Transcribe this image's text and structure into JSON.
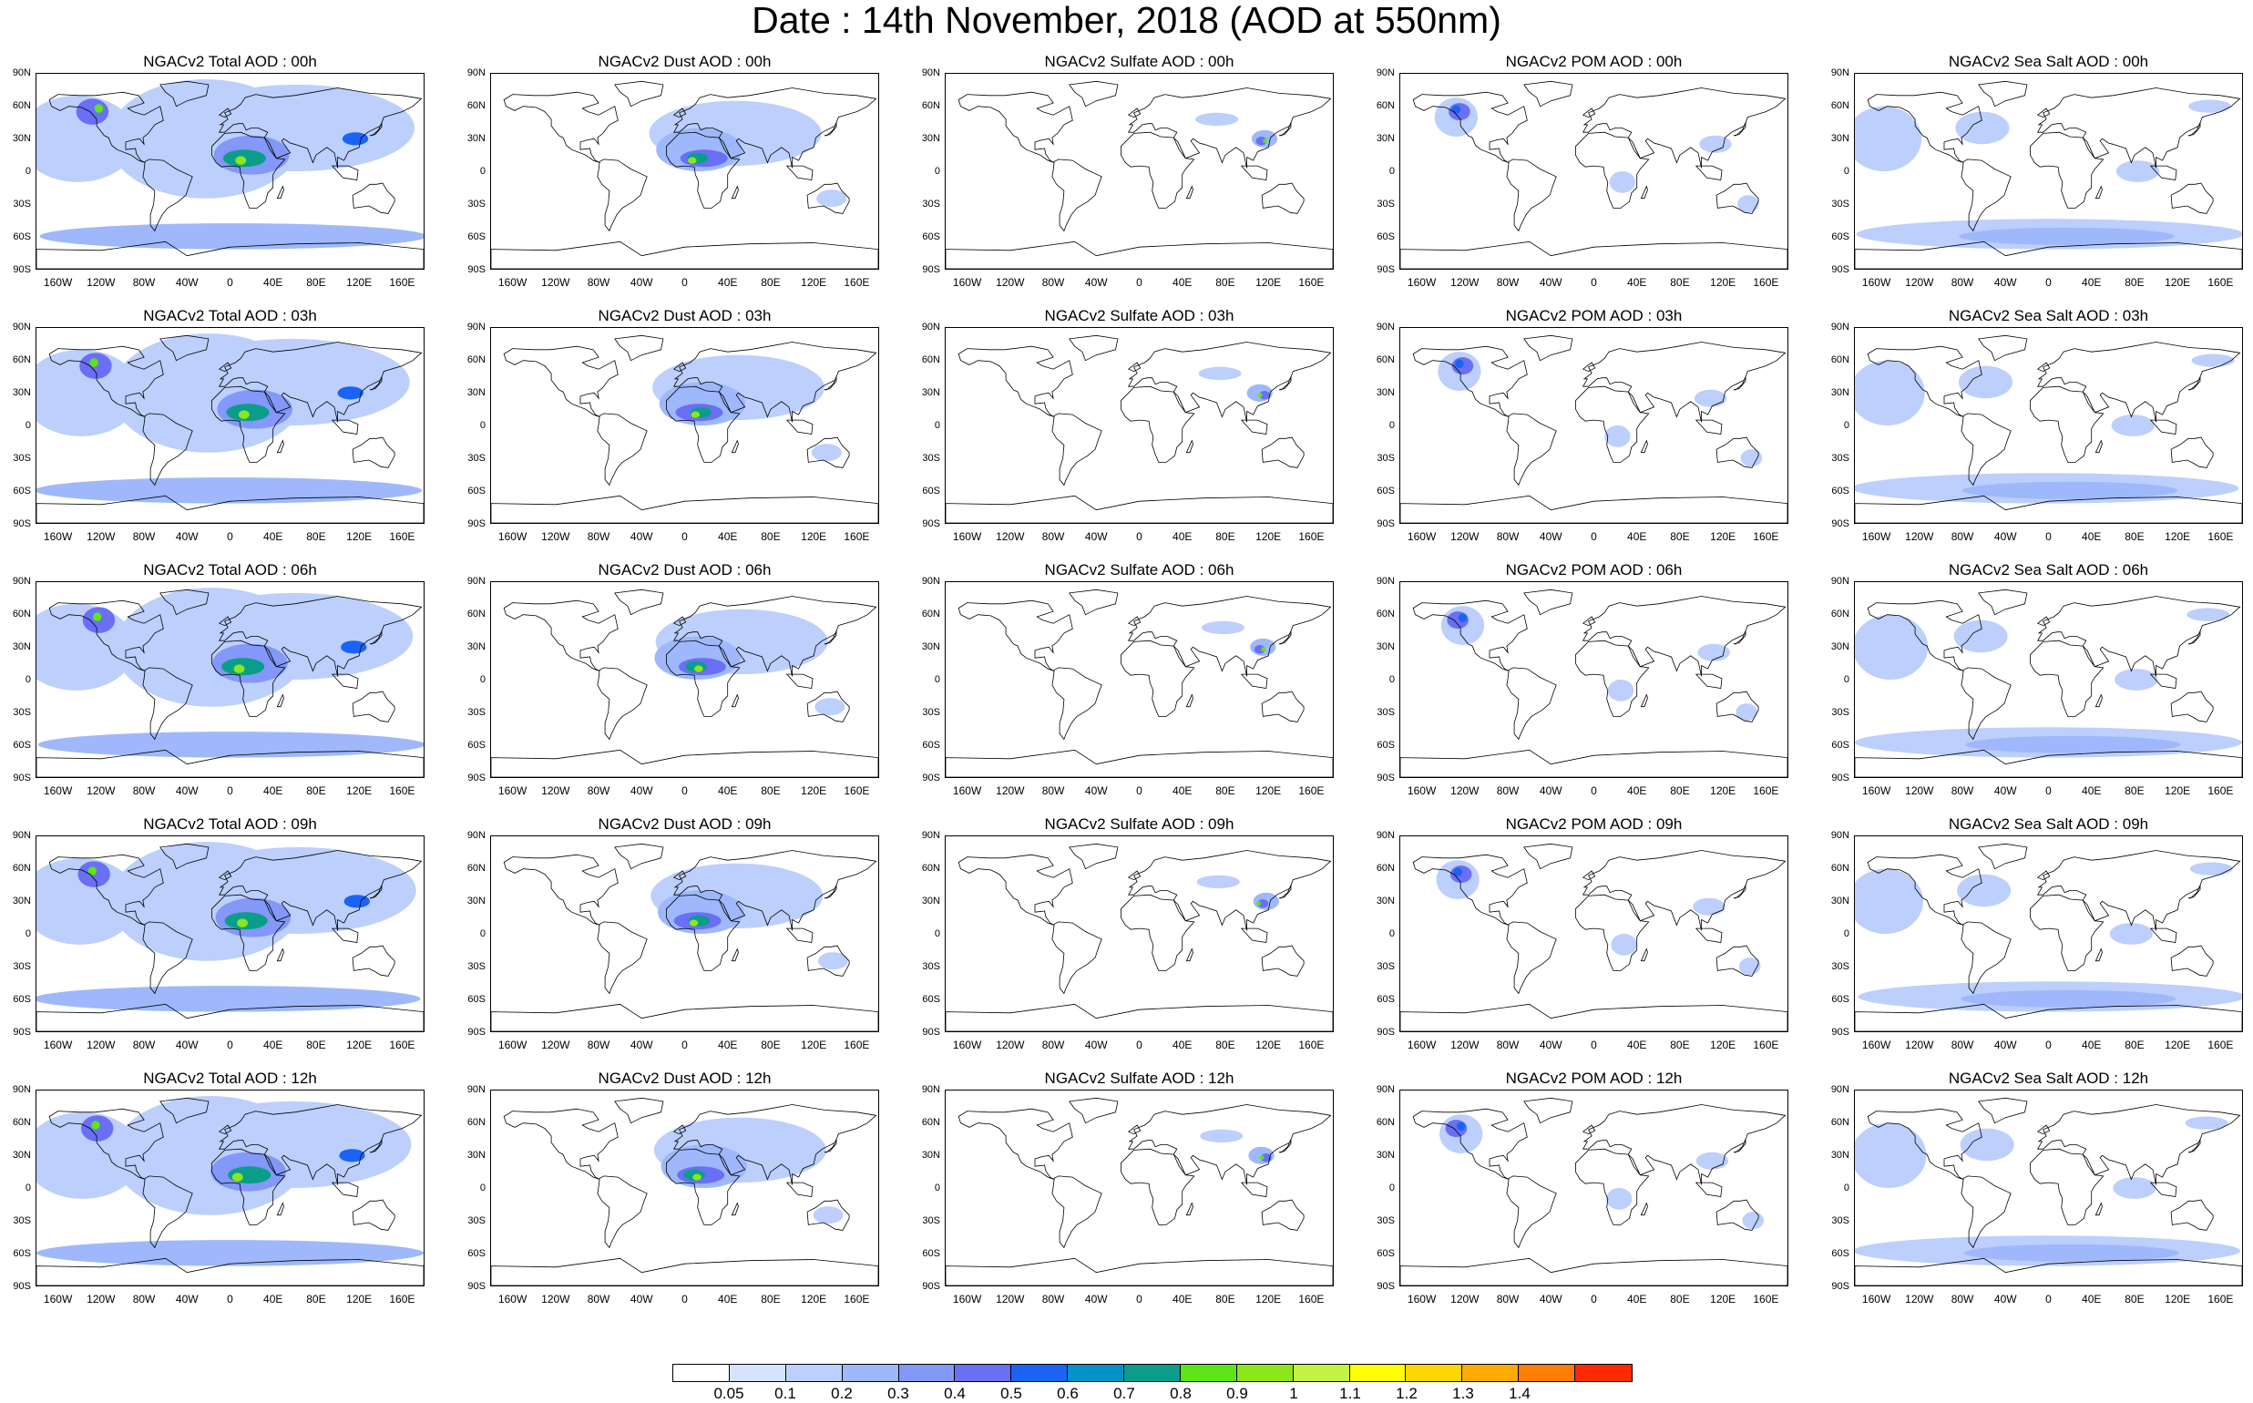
{
  "title": "Date : 14th November, 2018 (AOD at 550nm)",
  "lat_labels": [
    "90N",
    "60N",
    "30N",
    "0",
    "30S",
    "60S",
    "90S"
  ],
  "lon_labels": [
    "160W",
    "120W",
    "80W",
    "40W",
    "0",
    "40E",
    "80E",
    "120E",
    "160E"
  ],
  "species": [
    "Total",
    "Dust",
    "Sulfate",
    "POM",
    "Sea Salt"
  ],
  "panel_titles": [
    [
      "NGACv2 Total AOD : 00h",
      "NGACv2 Dust AOD : 00h",
      "NGACv2 Sulfate AOD : 00h",
      "NGACv2 POM AOD : 00h",
      "NGACv2 Sea Salt AOD : 00h"
    ],
    [
      "NGACv2 Total AOD : 03h",
      "NGACv2 Dust AOD : 03h",
      "NGACv2 Sulfate AOD : 03h",
      "NGACv2 POM AOD : 03h",
      "NGACv2 Sea Salt AOD : 03h"
    ],
    [
      "NGACv2 Total AOD : 06h",
      "NGACv2 Dust AOD : 06h",
      "NGACv2 Sulfate AOD : 06h",
      "NGACv2 POM AOD : 06h",
      "NGACv2 Sea Salt AOD : 06h"
    ],
    [
      "NGACv2 Total AOD : 09h",
      "NGACv2 Dust AOD : 09h",
      "NGACv2 Sulfate AOD : 09h",
      "NGACv2 POM AOD : 09h",
      "NGACv2 Sea Salt  AOD : 09h"
    ],
    [
      "NGACv2 Total AOD  : 12h",
      "NGACv2 Dust AOD : 12h",
      "NGACv2 Sulfate AOD : 12h",
      "NGACv2 POM  AOD : 12h",
      "NGACv2 Sea Salt AOD : 12h"
    ]
  ],
  "colorbar": {
    "colors": [
      "#ffffff",
      "#d6e2fe",
      "#bccffd",
      "#9eb8fb",
      "#8398f8",
      "#6a6ff5",
      "#1a64f5",
      "#0392c6",
      "#0a9e8a",
      "#5ce615",
      "#8ce61a",
      "#c3f245",
      "#ffff00",
      "#ffd500",
      "#ffaa00",
      "#ff7d00",
      "#ff2a00"
    ],
    "labels": [
      "0.05",
      "0.1",
      "0.2",
      "0.3",
      "0.4",
      "0.5",
      "0.6",
      "0.7",
      "0.8",
      "0.9",
      "1",
      "1.1",
      "1.2",
      "1.3",
      "1.4"
    ]
  },
  "land_polygons": [
    [
      [
        -168,
        66
      ],
      [
        -160,
        71
      ],
      [
        -140,
        70
      ],
      [
        -125,
        70
      ],
      [
        -100,
        73
      ],
      [
        -85,
        70
      ],
      [
        -80,
        63
      ],
      [
        -95,
        58
      ],
      [
        -90,
        55
      ],
      [
        -80,
        52
      ],
      [
        -65,
        60
      ],
      [
        -62,
        47
      ],
      [
        -70,
        43
      ],
      [
        -76,
        35
      ],
      [
        -81,
        31
      ],
      [
        -80,
        25
      ],
      [
        -84,
        30
      ],
      [
        -90,
        29
      ],
      [
        -97,
        27
      ],
      [
        -97,
        20
      ],
      [
        -88,
        21
      ],
      [
        -87,
        16
      ],
      [
        -83,
        10
      ],
      [
        -79,
        8
      ],
      [
        -85,
        10
      ],
      [
        -92,
        15
      ],
      [
        -105,
        20
      ],
      [
        -110,
        24
      ],
      [
        -113,
        31
      ],
      [
        -117,
        33
      ],
      [
        -124,
        42
      ],
      [
        -124,
        48
      ],
      [
        -130,
        55
      ],
      [
        -138,
        59
      ],
      [
        -150,
        60
      ],
      [
        -158,
        56
      ],
      [
        -166,
        60
      ]
    ],
    [
      [
        -79,
        9
      ],
      [
        -75,
        11
      ],
      [
        -62,
        10
      ],
      [
        -50,
        2
      ],
      [
        -35,
        -5
      ],
      [
        -38,
        -13
      ],
      [
        -41,
        -22
      ],
      [
        -48,
        -28
      ],
      [
        -58,
        -34
      ],
      [
        -63,
        -40
      ],
      [
        -68,
        -50
      ],
      [
        -70,
        -55
      ],
      [
        -74,
        -50
      ],
      [
        -74,
        -40
      ],
      [
        -71,
        -30
      ],
      [
        -70,
        -18
      ],
      [
        -77,
        -12
      ],
      [
        -81,
        -5
      ],
      [
        -80,
        1
      ]
    ],
    [
      [
        -50,
        60
      ],
      [
        -40,
        65
      ],
      [
        -22,
        70
      ],
      [
        -20,
        80
      ],
      [
        -40,
        83
      ],
      [
        -65,
        80
      ],
      [
        -60,
        73
      ],
      [
        -53,
        68
      ]
    ],
    [
      [
        -10,
        36
      ],
      [
        -6,
        43
      ],
      [
        -9,
        43
      ],
      [
        -2,
        48
      ],
      [
        -5,
        54
      ],
      [
        5,
        58
      ],
      [
        10,
        62
      ],
      [
        14,
        68
      ],
      [
        24,
        71
      ],
      [
        40,
        68
      ],
      [
        60,
        70
      ],
      [
        78,
        73
      ],
      [
        100,
        77
      ],
      [
        130,
        72
      ],
      [
        160,
        70
      ],
      [
        178,
        67
      ],
      [
        170,
        60
      ],
      [
        160,
        55
      ],
      [
        143,
        50
      ],
      [
        140,
        42
      ],
      [
        128,
        36
      ],
      [
        122,
        31
      ],
      [
        120,
        22
      ],
      [
        110,
        18
      ],
      [
        106,
        10
      ],
      [
        100,
        13
      ],
      [
        100,
        3
      ],
      [
        97,
        17
      ],
      [
        90,
        22
      ],
      [
        80,
        15
      ],
      [
        77,
        8
      ],
      [
        72,
        21
      ],
      [
        60,
        25
      ],
      [
        56,
        26
      ],
      [
        50,
        30
      ],
      [
        48,
        28
      ],
      [
        56,
        17
      ],
      [
        43,
        12
      ],
      [
        36,
        27
      ],
      [
        32,
        31
      ],
      [
        35,
        36
      ],
      [
        26,
        40
      ],
      [
        20,
        40
      ],
      [
        15,
        38
      ],
      [
        12,
        44
      ],
      [
        8,
        44
      ],
      [
        3,
        43
      ],
      [
        -5,
        36
      ]
    ],
    [
      [
        -17,
        21
      ],
      [
        -17,
        15
      ],
      [
        -13,
        8
      ],
      [
        -8,
        4
      ],
      [
        0,
        5
      ],
      [
        9,
        4
      ],
      [
        10,
        -3
      ],
      [
        13,
        -10
      ],
      [
        12,
        -18
      ],
      [
        15,
        -27
      ],
      [
        18,
        -34
      ],
      [
        25,
        -34
      ],
      [
        33,
        -28
      ],
      [
        35,
        -20
      ],
      [
        40,
        -15
      ],
      [
        40,
        -3
      ],
      [
        43,
        2
      ],
      [
        51,
        11
      ],
      [
        43,
        12
      ],
      [
        37,
        20
      ],
      [
        32,
        31
      ],
      [
        20,
        32
      ],
      [
        10,
        36
      ],
      [
        -5,
        35
      ],
      [
        -10,
        30
      ],
      [
        -17,
        23
      ]
    ],
    [
      [
        114,
        -22
      ],
      [
        115,
        -34
      ],
      [
        129,
        -32
      ],
      [
        135,
        -35
      ],
      [
        140,
        -38
      ],
      [
        147,
        -39
      ],
      [
        153,
        -28
      ],
      [
        153,
        -25
      ],
      [
        146,
        -18
      ],
      [
        142,
        -11
      ],
      [
        136,
        -12
      ],
      [
        130,
        -12
      ],
      [
        122,
        -18
      ]
    ],
    [
      [
        -180,
        -72
      ],
      [
        -120,
        -73
      ],
      [
        -60,
        -65
      ],
      [
        -40,
        -78
      ],
      [
        0,
        -70
      ],
      [
        60,
        -67
      ],
      [
        120,
        -66
      ],
      [
        180,
        -72
      ],
      [
        180,
        -90
      ],
      [
        -180,
        -90
      ]
    ],
    [
      [
        95,
        5
      ],
      [
        105,
        -6
      ],
      [
        118,
        -8
      ],
      [
        119,
        1
      ],
      [
        110,
        5
      ]
    ],
    [
      [
        -10,
        52
      ],
      [
        -6,
        55
      ],
      [
        -2,
        58
      ],
      [
        1,
        53
      ],
      [
        -5,
        50
      ]
    ],
    [
      [
        130,
        33
      ],
      [
        135,
        34
      ],
      [
        141,
        41
      ],
      [
        141,
        45
      ],
      [
        138,
        38
      ],
      [
        132,
        33
      ]
    ],
    [
      [
        44,
        -25
      ],
      [
        49,
        -14
      ],
      [
        50,
        -17
      ],
      [
        47,
        -25
      ]
    ]
  ],
  "aerosol_blobs": {
    "Total": [
      {
        "lon": -20,
        "lat": 30,
        "rx": 90,
        "ry": 55,
        "v": 0.1
      },
      {
        "lon": 60,
        "lat": 40,
        "rx": 110,
        "ry": 40,
        "v": 0.1
      },
      {
        "lon": -140,
        "lat": 30,
        "rx": 55,
        "ry": 40,
        "v": 0.1
      },
      {
        "lon": 0,
        "lat": -60,
        "rx": 180,
        "ry": 12,
        "v": 0.2
      },
      {
        "lon": 20,
        "lat": 15,
        "rx": 35,
        "ry": 18,
        "v": 0.3
      },
      {
        "lon": -125,
        "lat": 55,
        "rx": 15,
        "ry": 12,
        "v": 0.4
      },
      {
        "lon": 15,
        "lat": 12,
        "rx": 20,
        "ry": 8,
        "v": 0.7
      },
      {
        "lon": 115,
        "lat": 30,
        "rx": 12,
        "ry": 6,
        "v": 0.5
      },
      {
        "lon": -125,
        "lat": 58,
        "rx": 4,
        "ry": 4,
        "v": 0.8
      },
      {
        "lon": 10,
        "lat": 10,
        "rx": 5,
        "ry": 4,
        "v": 0.9
      }
    ],
    "Dust": [
      {
        "lon": 50,
        "lat": 35,
        "rx": 80,
        "ry": 30,
        "v": 0.1
      },
      {
        "lon": 15,
        "lat": 20,
        "rx": 40,
        "ry": 20,
        "v": 0.2
      },
      {
        "lon": 15,
        "lat": 12,
        "rx": 22,
        "ry": 8,
        "v": 0.4
      },
      {
        "lon": 12,
        "lat": 12,
        "rx": 10,
        "ry": 5,
        "v": 0.7
      },
      {
        "lon": 135,
        "lat": -25,
        "rx": 14,
        "ry": 8,
        "v": 0.1
      },
      {
        "lon": 10,
        "lat": 10,
        "rx": 4,
        "ry": 3,
        "v": 0.9
      }
    ],
    "Sulfate": [
      {
        "lon": 75,
        "lat": 48,
        "rx": 20,
        "ry": 6,
        "v": 0.1
      },
      {
        "lon": 115,
        "lat": 30,
        "rx": 12,
        "ry": 8,
        "v": 0.2
      },
      {
        "lon": 115,
        "lat": 28,
        "rx": 5,
        "ry": 4,
        "v": 0.4
      },
      {
        "lon": 114,
        "lat": 28,
        "rx": 2,
        "ry": 2,
        "v": 0.8
      }
    ],
    "POM": [
      {
        "lon": -125,
        "lat": 50,
        "rx": 20,
        "ry": 18,
        "v": 0.1
      },
      {
        "lon": -125,
        "lat": 55,
        "rx": 10,
        "ry": 8,
        "v": 0.4
      },
      {
        "lon": -125,
        "lat": 57,
        "rx": 4,
        "ry": 4,
        "v": 0.5
      },
      {
        "lon": 25,
        "lat": -10,
        "rx": 12,
        "ry": 10,
        "v": 0.1
      },
      {
        "lon": 145,
        "lat": -30,
        "rx": 10,
        "ry": 8,
        "v": 0.1
      },
      {
        "lon": 110,
        "lat": 25,
        "rx": 15,
        "ry": 8,
        "v": 0.1
      }
    ],
    "Sea Salt": [
      {
        "lon": -150,
        "lat": 30,
        "rx": 35,
        "ry": 30,
        "v": 0.1
      },
      {
        "lon": 0,
        "lat": -58,
        "rx": 180,
        "ry": 14,
        "v": 0.1
      },
      {
        "lon": 20,
        "lat": -60,
        "rx": 100,
        "ry": 8,
        "v": 0.2
      },
      {
        "lon": -60,
        "lat": 40,
        "rx": 25,
        "ry": 15,
        "v": 0.1
      },
      {
        "lon": 80,
        "lat": 0,
        "rx": 20,
        "ry": 10,
        "v": 0.1
      },
      {
        "lon": 150,
        "lat": 60,
        "rx": 20,
        "ry": 6,
        "v": 0.1
      }
    ]
  }
}
